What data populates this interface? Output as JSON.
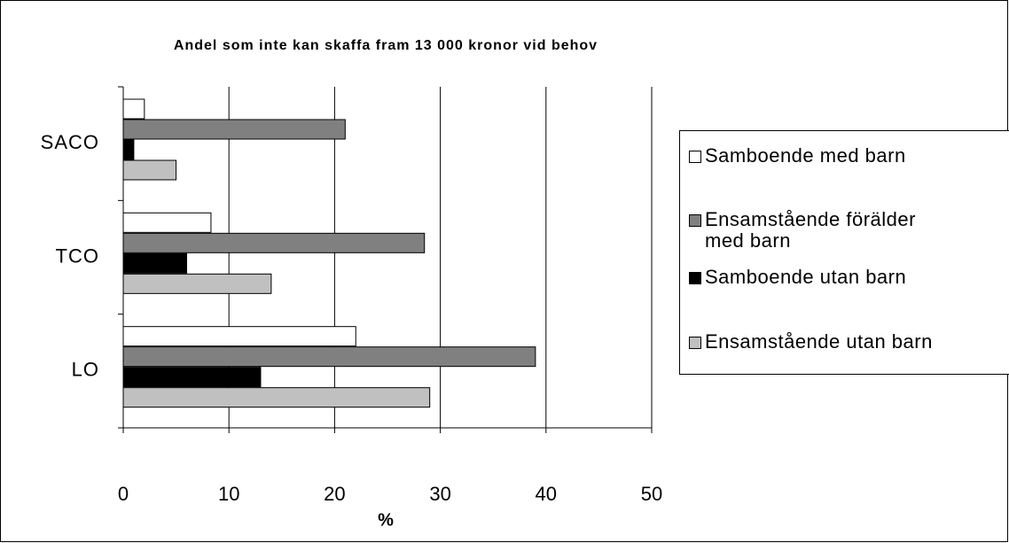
{
  "chart_data": {
    "type": "hbar",
    "title": "Andel som inte kan skaffa fram 13 000 kronor vid behov",
    "categories": [
      "SACO",
      "TCO",
      "LO"
    ],
    "series": [
      {
        "name": "Samboende med barn",
        "color": "#ffffff",
        "values": [
          2,
          8.3,
          22
        ]
      },
      {
        "name": "Ensamstående förälder med barn",
        "color": "#808080",
        "values": [
          21,
          28.5,
          39
        ]
      },
      {
        "name": "Samboende utan barn",
        "color": "#000000",
        "values": [
          1,
          6,
          13
        ]
      },
      {
        "name": "Ensamstående utan barn",
        "color": "#c0c0c0",
        "values": [
          5,
          14,
          29
        ]
      }
    ],
    "x_label": "%",
    "xlim": [
      0,
      50
    ],
    "xticks": [
      0,
      10,
      20,
      30,
      40,
      50
    ],
    "grid": true,
    "legend": "right"
  }
}
